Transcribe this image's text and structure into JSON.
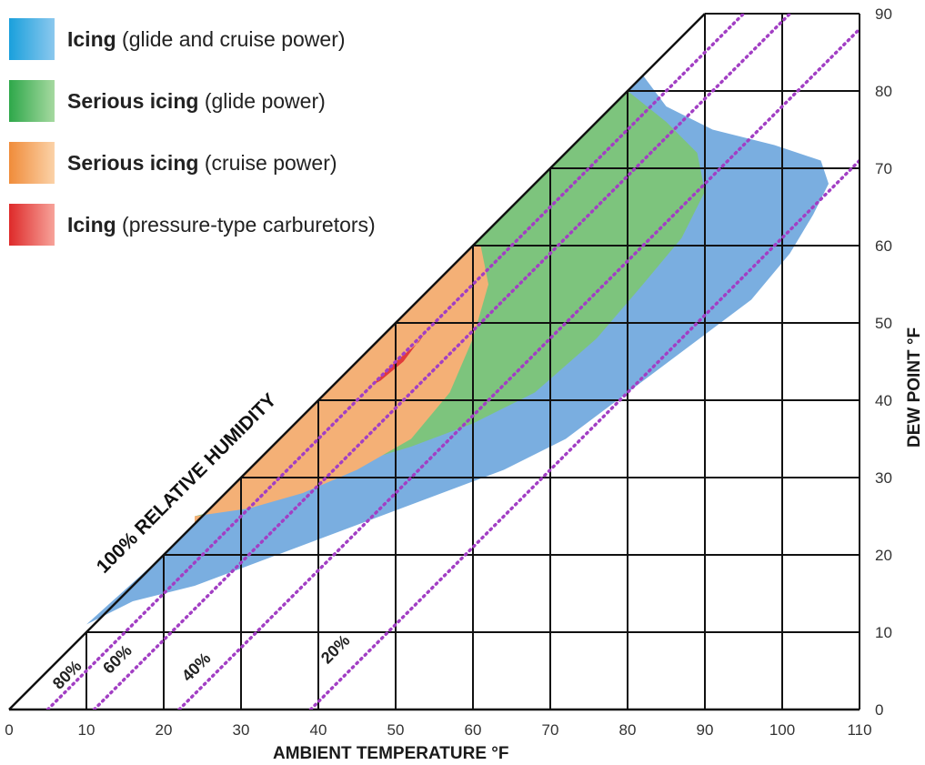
{
  "chart_data": {
    "type": "area",
    "xlabel": "AMBIENT TEMPERATURE  °F",
    "ylabel": "DEW POINT  °F",
    "xlim": [
      0,
      110
    ],
    "ylim": [
      0,
      90
    ],
    "x_ticks": [
      "0",
      "10",
      "20",
      "30",
      "40",
      "50",
      "60",
      "70",
      "80",
      "90",
      "100",
      "110"
    ],
    "y_ticks": [
      "0",
      "10",
      "20",
      "30",
      "40",
      "50",
      "60",
      "70",
      "80",
      "90"
    ],
    "humidity_line_label": "100% RELATIVE HUMIDITY",
    "rh_lines": [
      {
        "label": "80%",
        "x0": 5,
        "x1": 117
      },
      {
        "label": "60%",
        "x0": 11,
        "x1": 125
      },
      {
        "label": "40%",
        "x0": 22,
        "x1": 135
      },
      {
        "label": "20%",
        "x0": 39,
        "x1": 150
      }
    ],
    "series": [
      {
        "name": "Icing (glide and cruise power)",
        "bold": "Icing",
        "detail": " (glide and cruise power)",
        "color": "#7aaee0",
        "points": [
          [
            10,
            11
          ],
          [
            16,
            14
          ],
          [
            24,
            16
          ],
          [
            32,
            19
          ],
          [
            40,
            22
          ],
          [
            48,
            25
          ],
          [
            56,
            28
          ],
          [
            64,
            31
          ],
          [
            72,
            35
          ],
          [
            80,
            41
          ],
          [
            88,
            47
          ],
          [
            96,
            53
          ],
          [
            101,
            59
          ],
          [
            104,
            64
          ],
          [
            106,
            68
          ],
          [
            105,
            71
          ],
          [
            99,
            73
          ],
          [
            91,
            75
          ],
          [
            85,
            78
          ],
          [
            82,
            82
          ],
          [
            80,
            80
          ],
          [
            70,
            70
          ],
          [
            60,
            60
          ],
          [
            50,
            50
          ],
          [
            40,
            40
          ],
          [
            30,
            30
          ],
          [
            20,
            20
          ]
        ]
      },
      {
        "name": "Serious icing (glide power)",
        "bold": "Serious icing",
        "detail": " (glide power)",
        "color": "#7dc47d",
        "points": [
          [
            24,
            25
          ],
          [
            32,
            27
          ],
          [
            42,
            31
          ],
          [
            52,
            34
          ],
          [
            60,
            37
          ],
          [
            68,
            41
          ],
          [
            76,
            48
          ],
          [
            82,
            55
          ],
          [
            87,
            61
          ],
          [
            90,
            67
          ],
          [
            89,
            72
          ],
          [
            85,
            76
          ],
          [
            80,
            80
          ],
          [
            70,
            70
          ],
          [
            60,
            60
          ],
          [
            50,
            50
          ],
          [
            40,
            40
          ],
          [
            30,
            30
          ],
          [
            24,
            24
          ]
        ]
      },
      {
        "name": "Serious icing (cruise power)",
        "bold": "Serious icing",
        "detail": " (cruise power)",
        "color": "#f4b076",
        "points": [
          [
            24,
            25
          ],
          [
            31,
            26
          ],
          [
            38,
            28
          ],
          [
            45,
            31
          ],
          [
            52,
            35
          ],
          [
            57,
            41
          ],
          [
            60,
            48
          ],
          [
            62,
            55
          ],
          [
            61,
            60
          ],
          [
            60,
            60
          ],
          [
            50,
            50
          ],
          [
            40,
            40
          ],
          [
            30,
            30
          ],
          [
            24,
            24
          ]
        ]
      },
      {
        "name": "Icing (pressure-type carburetors)",
        "bold": "Icing",
        "detail": " (pressure-type carburetors)",
        "color": "#e23a3a",
        "points": [
          [
            47,
            42
          ],
          [
            50,
            45
          ],
          [
            53,
            47.5
          ],
          [
            54,
            49
          ],
          [
            51,
            45
          ],
          [
            48,
            42.5
          ]
        ]
      }
    ]
  }
}
